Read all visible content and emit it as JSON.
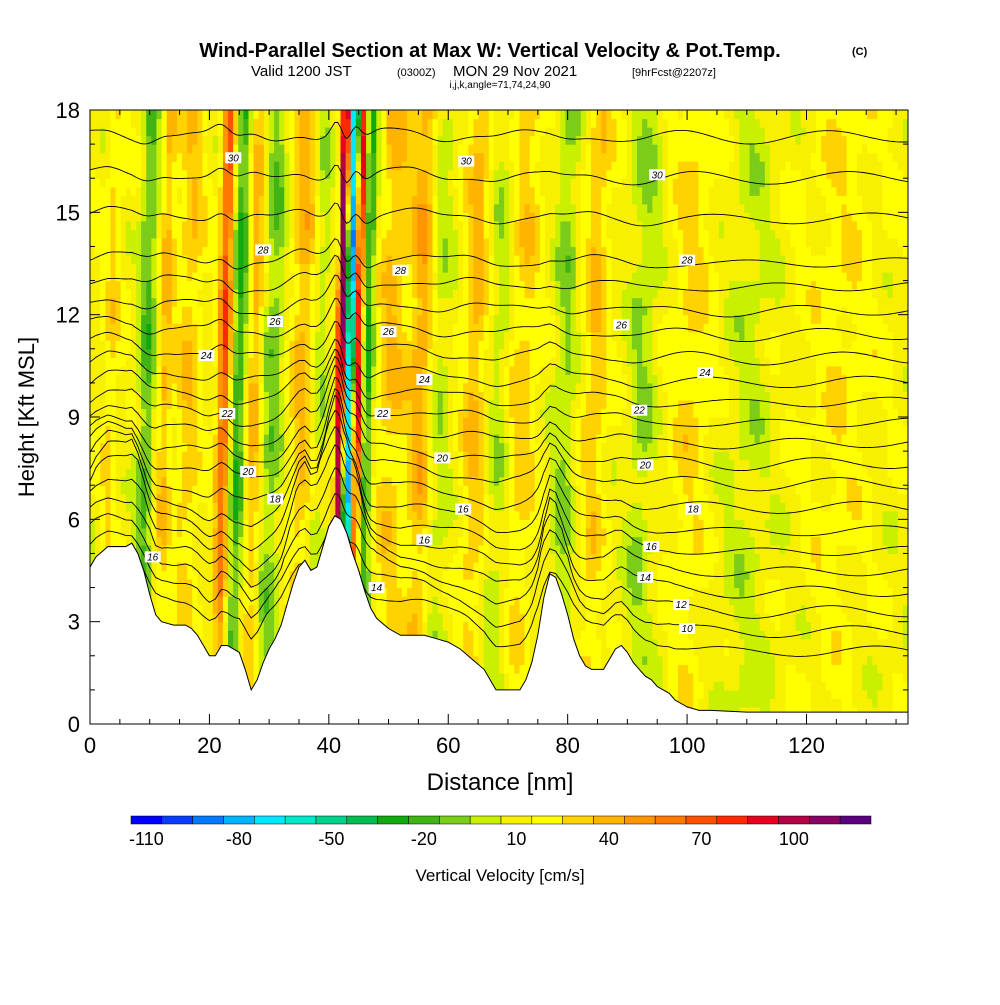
{
  "header": {
    "title": "Wind-Parallel Section at Max W: Vertical Velocity & Pot.Temp.",
    "title_tag": "(C)",
    "valid_prefix": "Valid 1200 JST",
    "valid_zulu": "(0300Z)",
    "valid_date": "MON 29 Nov 2021",
    "forecast_tag": "[9hrFcst@2207z]",
    "indices": "i,j,k,angle=71,74,24,90"
  },
  "chart_data": {
    "type": "heatmap",
    "title": "Wind-Parallel Section at Max W: Vertical Velocity & Pot.Temp.",
    "xlabel": "Distance [nm]",
    "ylabel": "Height [Kft MSL]",
    "xlim": [
      0,
      137
    ],
    "ylim": [
      0,
      18
    ],
    "x_ticks": [
      0,
      20,
      40,
      60,
      80,
      100,
      120
    ],
    "y_ticks": [
      0,
      3,
      6,
      9,
      12,
      15,
      18
    ],
    "x_tick_labels": [
      "0",
      "20",
      "40",
      "60",
      "80",
      "100",
      "120"
    ],
    "y_tick_labels": [
      "0",
      "3",
      "6",
      "9",
      "12",
      "15",
      "18"
    ],
    "terrain": [
      [
        0,
        4.6
      ],
      [
        1,
        4.9
      ],
      [
        3,
        5.2
      ],
      [
        6,
        5.2
      ],
      [
        7,
        5.3
      ],
      [
        8,
        5.0
      ],
      [
        9,
        4.5
      ],
      [
        10,
        3.8
      ],
      [
        11,
        3.2
      ],
      [
        12,
        3.0
      ],
      [
        14,
        2.9
      ],
      [
        16,
        2.9
      ],
      [
        17,
        2.8
      ],
      [
        18,
        2.6
      ],
      [
        19,
        2.3
      ],
      [
        20,
        2.0
      ],
      [
        21,
        2.0
      ],
      [
        22,
        2.3
      ],
      [
        23,
        2.3
      ],
      [
        25,
        2.1
      ],
      [
        26,
        1.6
      ],
      [
        27,
        1.0
      ],
      [
        28,
        1.3
      ],
      [
        29,
        1.8
      ],
      [
        30,
        2.2
      ],
      [
        31,
        2.5
      ],
      [
        32,
        2.9
      ],
      [
        33,
        3.5
      ],
      [
        34,
        4.1
      ],
      [
        35,
        4.6
      ],
      [
        36,
        4.8
      ],
      [
        37,
        4.5
      ],
      [
        38,
        4.6
      ],
      [
        39,
        5.2
      ],
      [
        40,
        5.8
      ],
      [
        41,
        6.1
      ],
      [
        42,
        6.0
      ],
      [
        43,
        5.6
      ],
      [
        44,
        5.0
      ],
      [
        45,
        4.5
      ],
      [
        46,
        3.9
      ],
      [
        47,
        3.4
      ],
      [
        48,
        3.1
      ],
      [
        50,
        2.8
      ],
      [
        52,
        2.6
      ],
      [
        54,
        2.6
      ],
      [
        56,
        2.6
      ],
      [
        58,
        2.5
      ],
      [
        60,
        2.4
      ],
      [
        62,
        2.2
      ],
      [
        64,
        1.9
      ],
      [
        66,
        1.6
      ],
      [
        68,
        1.0
      ],
      [
        70,
        1.0
      ],
      [
        72,
        1.0
      ],
      [
        73,
        1.3
      ],
      [
        74,
        1.8
      ],
      [
        75,
        2.6
      ],
      [
        76,
        3.7
      ],
      [
        77,
        4.4
      ],
      [
        78,
        4.3
      ],
      [
        79,
        3.8
      ],
      [
        80,
        3.2
      ],
      [
        81,
        2.5
      ],
      [
        82,
        2.0
      ],
      [
        83,
        1.7
      ],
      [
        84,
        1.6
      ],
      [
        86,
        1.6
      ],
      [
        87,
        1.9
      ],
      [
        88,
        2.2
      ],
      [
        89,
        2.3
      ],
      [
        90,
        2.1
      ],
      [
        91,
        1.8
      ],
      [
        92,
        1.6
      ],
      [
        93,
        1.4
      ],
      [
        94,
        1.3
      ],
      [
        95,
        1.1
      ],
      [
        96,
        1.0
      ],
      [
        97,
        0.9
      ],
      [
        98,
        0.7
      ],
      [
        99,
        0.6
      ],
      [
        100,
        0.5
      ],
      [
        102,
        0.4
      ],
      [
        104,
        0.4
      ],
      [
        110,
        0.35
      ],
      [
        120,
        0.35
      ],
      [
        130,
        0.35
      ],
      [
        137,
        0.35
      ]
    ],
    "updrafts": [
      {
        "x": 3,
        "w": 1.2,
        "amp": 15
      },
      {
        "x": 9,
        "w": 1.5,
        "amp": -30
      },
      {
        "x": 12,
        "w": 1.2,
        "amp": 25
      },
      {
        "x": 16,
        "w": 2.0,
        "amp": 20
      },
      {
        "x": 22,
        "w": 1.1,
        "amp": 60
      },
      {
        "x": 24.5,
        "w": 1.4,
        "amp": -40
      },
      {
        "x": 27,
        "w": 1.5,
        "amp": 30
      },
      {
        "x": 30,
        "w": 2.0,
        "amp": -25
      },
      {
        "x": 35,
        "w": 2.0,
        "amp": 25
      },
      {
        "x": 38,
        "w": 1.5,
        "amp": -15
      },
      {
        "x": 41.5,
        "w": 0.7,
        "amp": 110
      },
      {
        "x": 43,
        "w": 0.9,
        "amp": -100
      },
      {
        "x": 44.3,
        "w": 0.7,
        "amp": 90
      },
      {
        "x": 46,
        "w": 1.0,
        "amp": -40
      },
      {
        "x": 50,
        "w": 2.5,
        "amp": 22
      },
      {
        "x": 55,
        "w": 2.0,
        "amp": 30
      },
      {
        "x": 58,
        "w": 2.0,
        "amp": -15
      },
      {
        "x": 64,
        "w": 2.0,
        "amp": 25
      },
      {
        "x": 68,
        "w": 2.0,
        "amp": -15
      },
      {
        "x": 72,
        "w": 2.5,
        "amp": 18
      },
      {
        "x": 79,
        "w": 2.0,
        "amp": -20
      },
      {
        "x": 84,
        "w": 2.0,
        "amp": 22
      },
      {
        "x": 92,
        "w": 2.5,
        "amp": -18
      },
      {
        "x": 100,
        "w": 3.0,
        "amp": 15
      },
      {
        "x": 110,
        "w": 4.0,
        "amp": -12
      },
      {
        "x": 125,
        "w": 5.0,
        "amp": 10
      }
    ],
    "theta_contours": {
      "levels": [
        10,
        11,
        12,
        13,
        14,
        15,
        16,
        17,
        18,
        19,
        20,
        21,
        22,
        23,
        24,
        25,
        26,
        27,
        28,
        29,
        30,
        31
      ],
      "base_heights_kft": [
        2.0,
        2.6,
        3.2,
        3.8,
        4.4,
        5.0,
        5.6,
        6.3,
        7.0,
        7.6,
        8.2,
        8.8,
        9.4,
        10.0,
        10.7,
        11.4,
        12.1,
        12.8,
        13.5,
        14.8,
        16.0,
        17.2
      ],
      "labels": [
        {
          "text": "30",
          "x": 24,
          "y": 16.6
        },
        {
          "text": "30",
          "x": 63,
          "y": 16.5
        },
        {
          "text": "30",
          "x": 95,
          "y": 16.1
        },
        {
          "text": "28",
          "x": 29,
          "y": 13.9
        },
        {
          "text": "28",
          "x": 52,
          "y": 13.3
        },
        {
          "text": "28",
          "x": 100,
          "y": 13.6
        },
        {
          "text": "26",
          "x": 31,
          "y": 11.8
        },
        {
          "text": "26",
          "x": 50,
          "y": 11.5
        },
        {
          "text": "26",
          "x": 89,
          "y": 11.7
        },
        {
          "text": "24",
          "x": 19.5,
          "y": 10.8
        },
        {
          "text": "24",
          "x": 56,
          "y": 10.1
        },
        {
          "text": "24",
          "x": 103,
          "y": 10.3
        },
        {
          "text": "22",
          "x": 23,
          "y": 9.1
        },
        {
          "text": "22",
          "x": 49,
          "y": 9.1
        },
        {
          "text": "22",
          "x": 92,
          "y": 9.2
        },
        {
          "text": "20",
          "x": 26.5,
          "y": 7.4
        },
        {
          "text": "20",
          "x": 59,
          "y": 7.8
        },
        {
          "text": "20",
          "x": 93,
          "y": 7.6
        },
        {
          "text": "18",
          "x": 31,
          "y": 6.6
        },
        {
          "text": "18",
          "x": 101,
          "y": 6.3
        },
        {
          "text": "16",
          "x": 62.5,
          "y": 6.3
        },
        {
          "text": "16",
          "x": 56,
          "y": 5.4
        },
        {
          "text": "16",
          "x": 94,
          "y": 5.2
        },
        {
          "text": "16",
          "x": 10.5,
          "y": 4.9
        },
        {
          "text": "14",
          "x": 48,
          "y": 4.0
        },
        {
          "text": "14",
          "x": 93,
          "y": 4.3
        },
        {
          "text": "12",
          "x": 99,
          "y": 3.5
        },
        {
          "text": "10",
          "x": 100,
          "y": 2.8
        }
      ]
    },
    "colorbar": {
      "label": "Vertical Velocity [cm/s]",
      "min": -120,
      "max": 120,
      "step": 10,
      "tick_values": [
        -110,
        -80,
        -50,
        -20,
        10,
        40,
        70,
        100
      ],
      "tick_labels": [
        "-110",
        "-80",
        "-50",
        "-20",
        "10",
        "40",
        "70",
        "100"
      ],
      "colors": [
        "#0000ff",
        "#0a3cff",
        "#0078ff",
        "#00b4ff",
        "#00e8ff",
        "#00e8c8",
        "#00d28c",
        "#00bc50",
        "#10aa10",
        "#40b414",
        "#7ccc1a",
        "#c8f000",
        "#f8f000",
        "#ffff00",
        "#ffd200",
        "#ffb400",
        "#ff9600",
        "#ff7800",
        "#ff5000",
        "#ff2800",
        "#e6001e",
        "#b40046",
        "#8c0064",
        "#5a007e"
      ]
    }
  }
}
